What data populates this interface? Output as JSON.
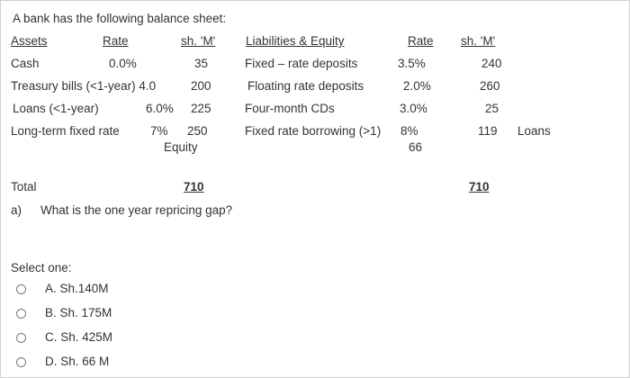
{
  "question": {
    "intro": "A bank has the following balance sheet:",
    "headers": {
      "assets": "Assets",
      "rate_left": "Rate",
      "sh_left": "sh. 'M'",
      "liabilities": "Liabilities & Equity",
      "rate_right": "Rate",
      "sh_right": "sh. 'M'"
    },
    "rows": [
      {
        "asset": "Cash",
        "asset_rate": "0.0%",
        "asset_amount": "35",
        "liability": "Fixed – rate deposits",
        "liability_rate": "3.5%",
        "liability_amount": "240"
      },
      {
        "asset": "Treasury bills (<1-year) 4.0",
        "asset_rate": "",
        "asset_amount": "200",
        "liability": "Floating rate deposits",
        "liability_rate": "2.0%",
        "liability_amount": "260"
      },
      {
        "asset": "Loans (<1-year)",
        "asset_rate": "6.0%",
        "asset_amount": "225",
        "liability": "Four-month CDs",
        "liability_rate": "3.0%",
        "liability_amount": "25"
      },
      {
        "asset": "Long-term fixed rate",
        "asset_rate": "7%",
        "asset_amount": "250",
        "liability": "Fixed rate borrowing (>1)",
        "liability_rate": "8%",
        "liability_amount": "119",
        "note": "Loans"
      }
    ],
    "equity_label": "Equity",
    "equity_value": "66",
    "total_label": "Total",
    "total_assets": "710",
    "total_liabilities": "710",
    "part_marker": "a)",
    "part_text": "What is the one year repricing gap?"
  },
  "answer": {
    "prompt": "Select one:",
    "options": [
      {
        "label": "A. Sh.140M"
      },
      {
        "label": "B. Sh. 175M"
      },
      {
        "label": "C. Sh. 425M"
      },
      {
        "label": "D.  Sh. 66 M"
      }
    ]
  }
}
